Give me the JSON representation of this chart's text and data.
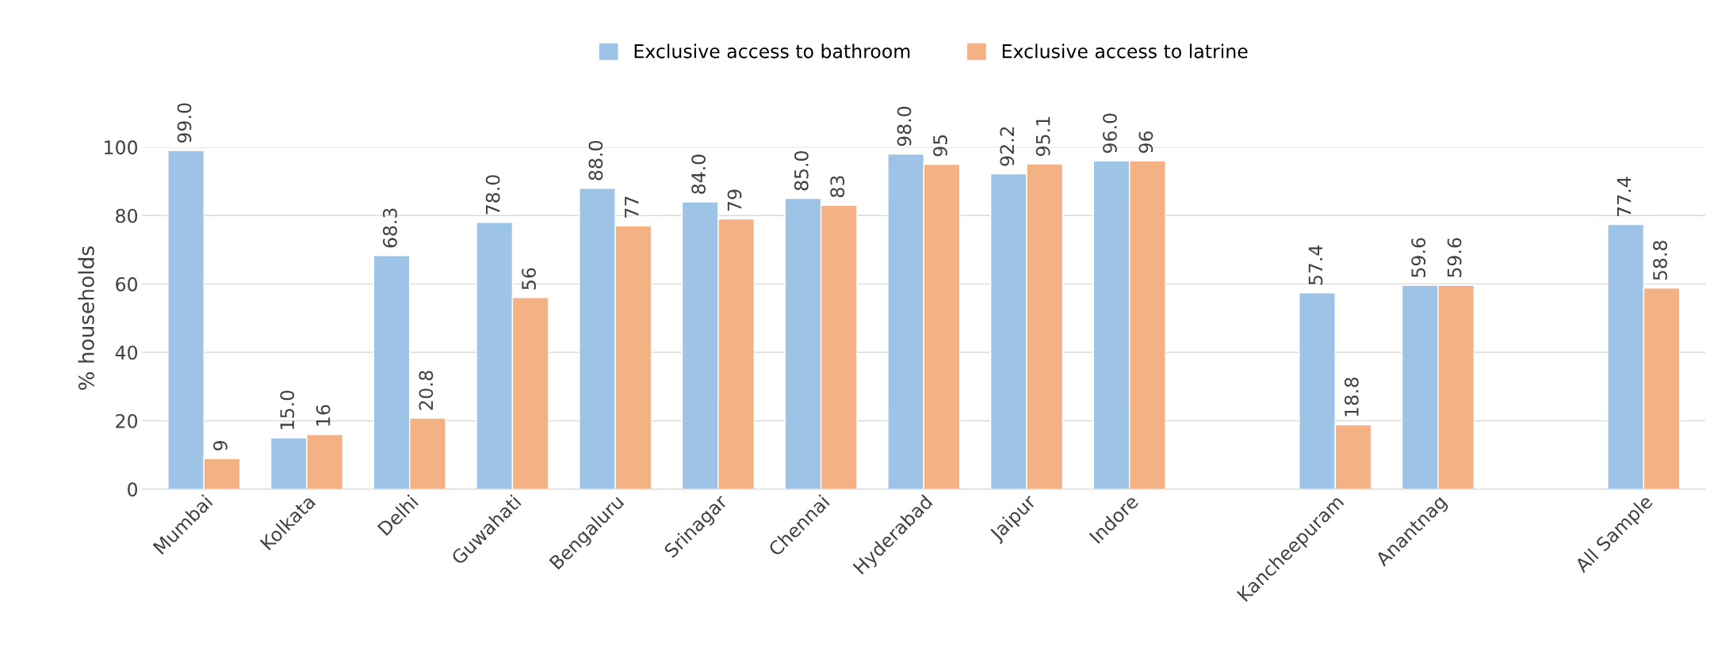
{
  "chart_data": {
    "type": "bar",
    "ylabel": "% households",
    "categories": [
      "Mumbai",
      "Kolkata",
      "Delhi",
      "Guwahati",
      "Bengaluru",
      "Srinagar",
      "Chennai",
      "Hyderabad",
      "Jaipur",
      "Indore",
      null,
      "Kancheepuram",
      "Anantnag",
      null,
      "All Sample"
    ],
    "series": [
      {
        "name": "Exclusive access to bathroom",
        "color": "#9dc3e6",
        "values": [
          99.0,
          15.0,
          68.3,
          78.0,
          88.0,
          84.0,
          85.0,
          98.0,
          92.2,
          96.0,
          null,
          57.4,
          59.6,
          null,
          77.4
        ],
        "value_labels": [
          "99.0",
          "15.0",
          "68.3",
          "78.0",
          "88.0",
          "84.0",
          "85.0",
          "98.0",
          "92.2",
          "96.0",
          null,
          "57.4",
          "59.6",
          null,
          "77.4"
        ]
      },
      {
        "name": "Exclusive access to latrine",
        "color": "#f4b183",
        "values": [
          9,
          16,
          20.8,
          56,
          77,
          79,
          83,
          95,
          95.1,
          96,
          null,
          18.8,
          59.6,
          null,
          58.8
        ],
        "value_labels": [
          "9",
          "16",
          "20.8",
          "56",
          "77",
          "79",
          "83",
          "95",
          "95.1",
          "96",
          null,
          "18.8",
          "59.6",
          null,
          "58.8"
        ]
      }
    ],
    "ylim": [
      0,
      100
    ],
    "yticks": [
      0,
      20,
      40,
      60,
      80,
      100
    ],
    "grid": "y",
    "legend": "top"
  }
}
